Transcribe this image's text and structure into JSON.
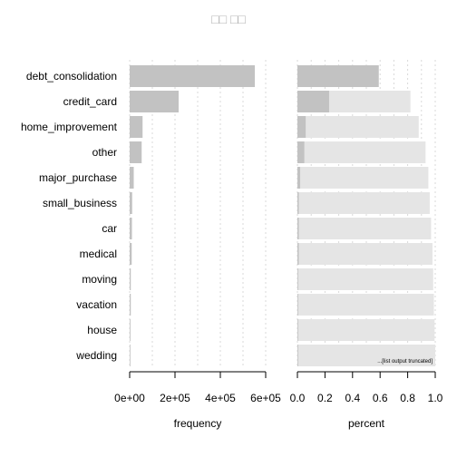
{
  "chart_data": {
    "type": "bar",
    "title": "□□ □□",
    "categories": [
      "debt_consolidation",
      "credit_card",
      "home_improvement",
      "other",
      "major_purchase",
      "small_business",
      "car",
      "medical",
      "moving",
      "vacation",
      "house",
      "wedding"
    ],
    "panels": [
      {
        "name": "frequency",
        "xlabel": "frequency",
        "xlim": [
          0,
          600000
        ],
        "ticks": [
          0,
          200000,
          400000,
          600000
        ],
        "tick_labels": [
          "0e+00",
          "2e+05",
          "4e+05",
          "6e+05"
        ],
        "values": [
          552000,
          216000,
          57000,
          53000,
          18000,
          11000,
          10000,
          9000,
          5000,
          5000,
          3500,
          2500
        ]
      },
      {
        "name": "percent",
        "xlabel": "percent",
        "xlim": [
          0,
          1
        ],
        "ticks": [
          0,
          0.2,
          0.4,
          0.6,
          0.8,
          1.0
        ],
        "tick_labels": [
          "0.0",
          "0.2",
          "0.4",
          "0.6",
          "0.8",
          "1.0"
        ],
        "values": [
          0.59,
          0.23,
          0.06,
          0.05,
          0.02,
          0.01,
          0.01,
          0.01,
          0.005,
          0.005,
          0.004,
          0.003
        ],
        "cumulative": [
          0.59,
          0.82,
          0.88,
          0.93,
          0.95,
          0.96,
          0.97,
          0.98,
          0.985,
          0.99,
          0.995,
          1.0
        ],
        "note": "...[list output truncated]"
      }
    ],
    "colors": {
      "bar": "#c2c2c2",
      "cumulative": "#e5e5e5",
      "grid": "#d9d9d9",
      "title": "#b3b3b3"
    },
    "grid": true
  }
}
